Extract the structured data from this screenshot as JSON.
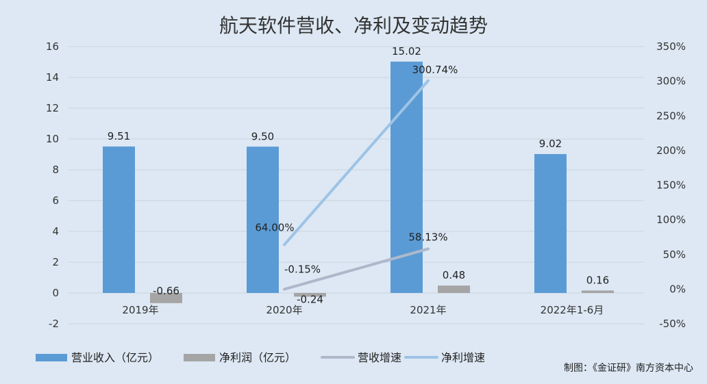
{
  "chart_data": {
    "type": "bar",
    "title": "航天软件营收、净利及变动趋势",
    "categories": [
      "2019年",
      "2020年",
      "2021年",
      "2022年1-6月"
    ],
    "y_left": {
      "ylim": [
        -2,
        16
      ],
      "ticks": [
        "16",
        "14",
        "12",
        "10",
        "8",
        "6",
        "4",
        "2",
        "0",
        "-2"
      ],
      "tick_values": [
        16,
        14,
        12,
        10,
        8,
        6,
        4,
        2,
        0,
        -2
      ]
    },
    "y_right": {
      "ylim": [
        -50,
        350
      ],
      "ticks": [
        "350%",
        "300%",
        "250%",
        "200%",
        "150%",
        "100%",
        "50%",
        "0%",
        "-50%"
      ],
      "tick_values": [
        350,
        300,
        250,
        200,
        150,
        100,
        50,
        0,
        -50
      ]
    },
    "series": [
      {
        "name": "营业收入（亿元）",
        "kind": "bar",
        "axis": "left",
        "color": "#5b9bd5",
        "values": [
          9.51,
          9.5,
          15.02,
          9.02
        ],
        "labels": [
          "9.51",
          "9.50",
          "15.02",
          "9.02"
        ]
      },
      {
        "name": "净利润（亿元）",
        "kind": "bar",
        "axis": "left",
        "color": "#a5a5a5",
        "values": [
          -0.66,
          -0.24,
          0.48,
          0.16
        ],
        "labels": [
          "-0.66",
          "-0.24",
          "0.48",
          "0.16"
        ]
      },
      {
        "name": "营收增速",
        "kind": "line",
        "axis": "right",
        "color": "#adb9ca",
        "points": [
          {
            "category": "2020年",
            "value": -0.15,
            "label": "-0.15%"
          },
          {
            "category": "2021年",
            "value": 58.13,
            "label": "58.13%"
          }
        ]
      },
      {
        "name": "净利增速",
        "kind": "line",
        "axis": "right",
        "color": "#9dc3e6",
        "points": [
          {
            "category": "2020年",
            "value": 64.0,
            "label": "64.00%"
          },
          {
            "category": "2021年",
            "value": 300.74,
            "label": "300.74%"
          }
        ]
      }
    ],
    "grid": true,
    "legend_position": "bottom-left"
  },
  "credit": "制图：《金证研》南方资本中心"
}
